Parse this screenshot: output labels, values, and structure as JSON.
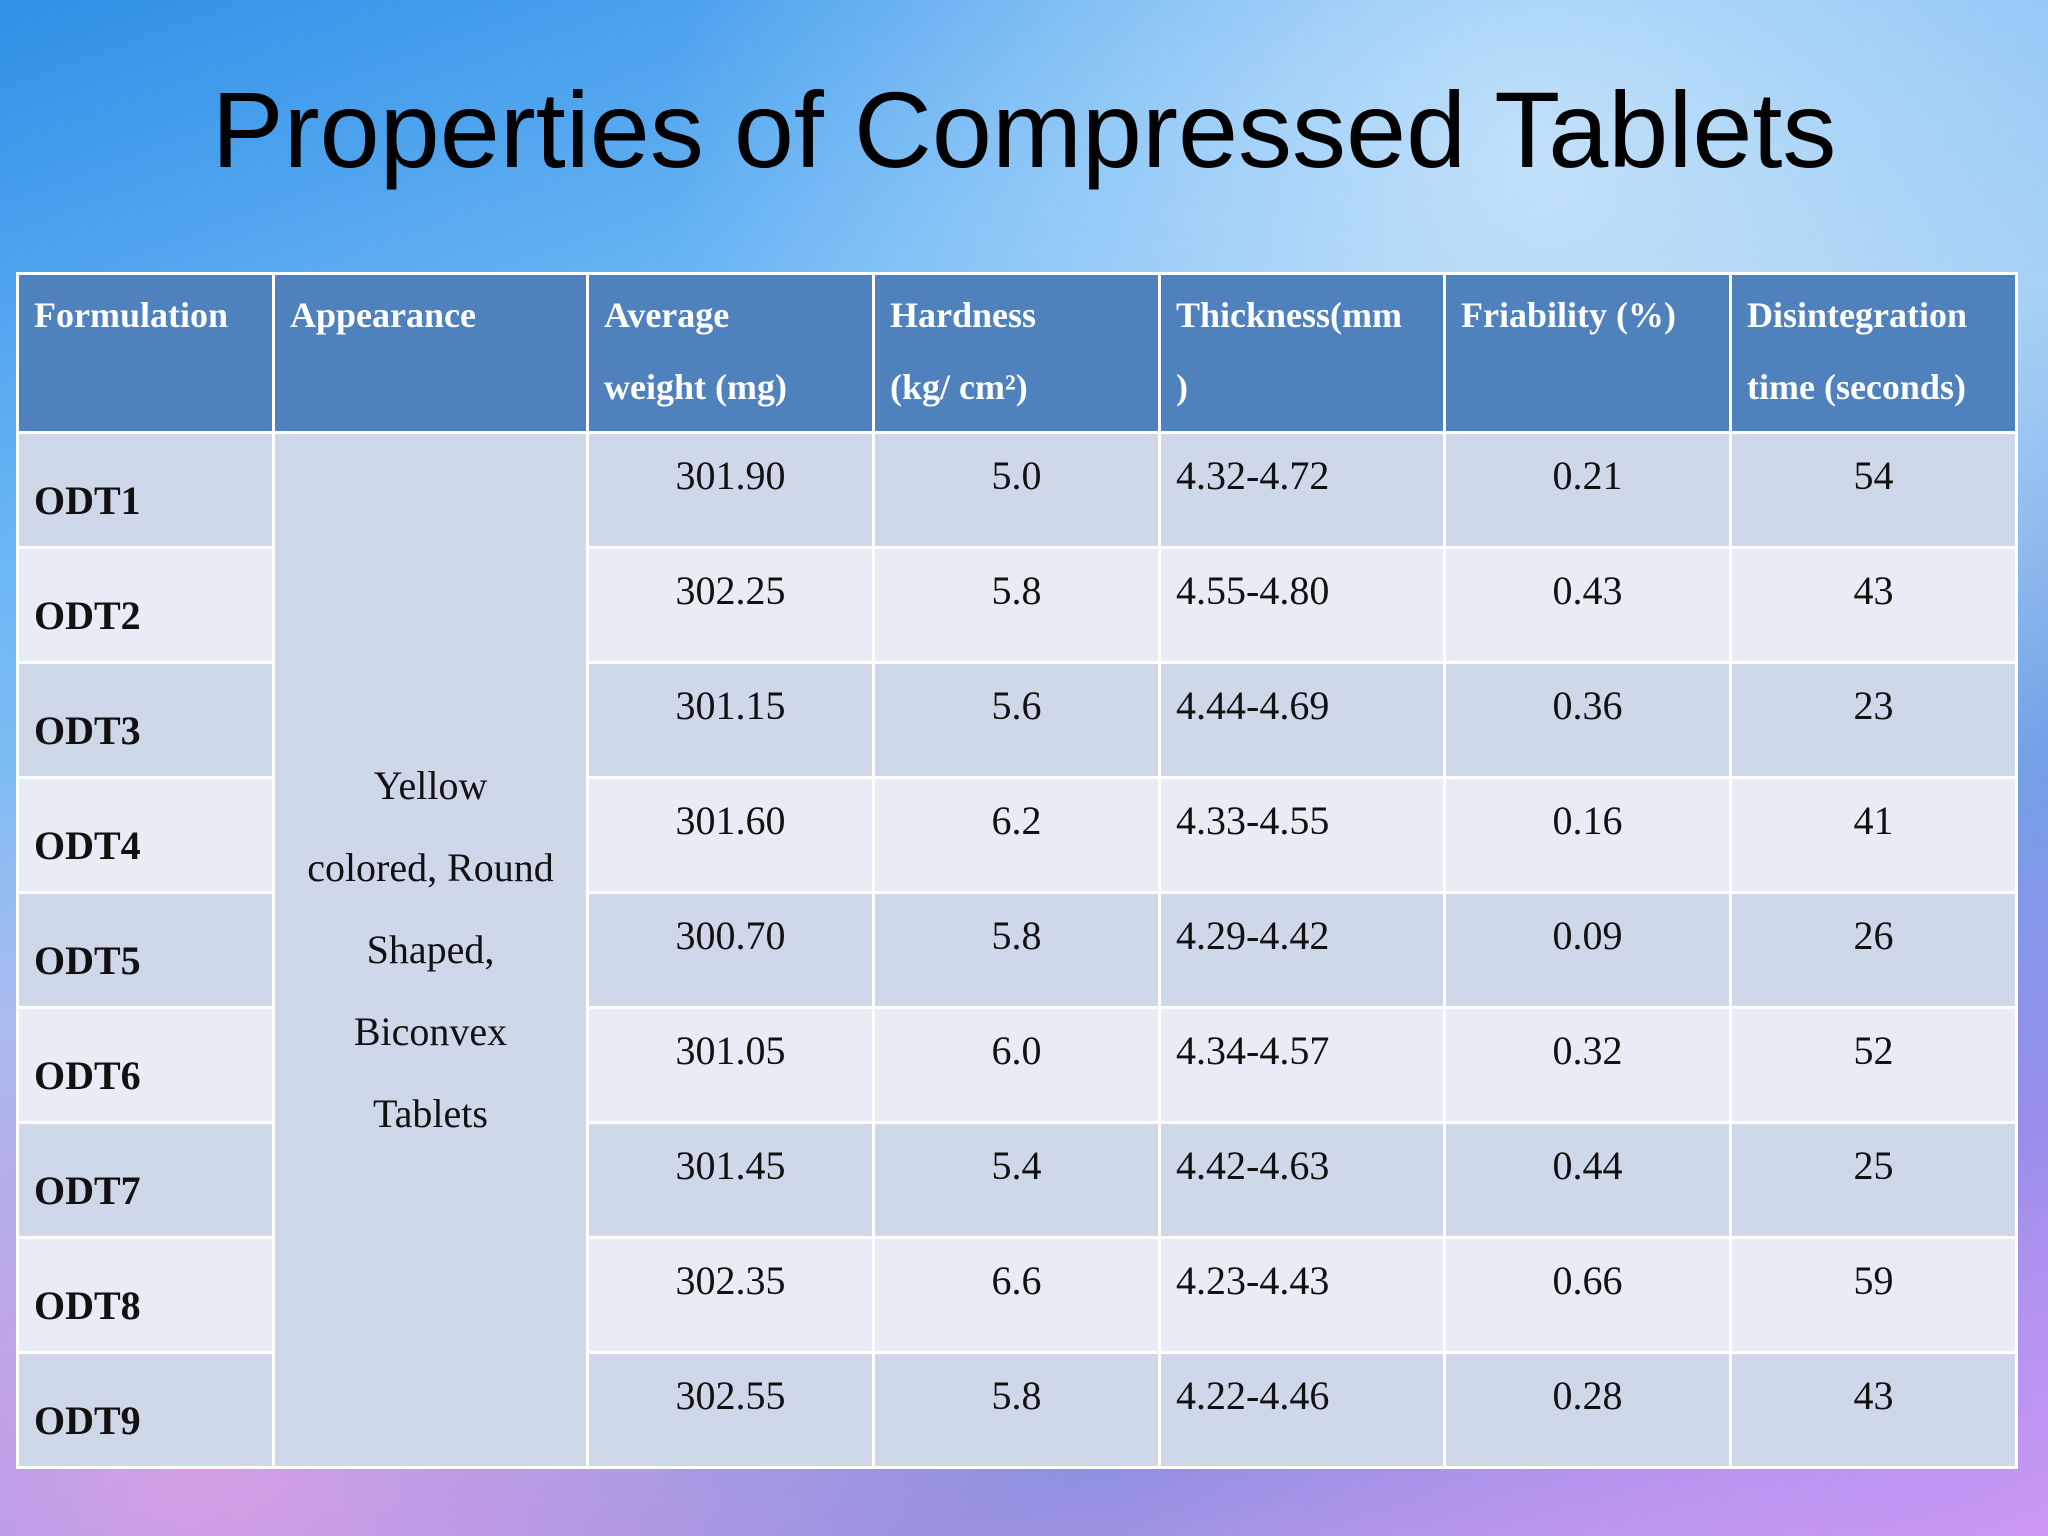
{
  "title": "Properties of Compressed Tablets",
  "table": {
    "header": [
      [
        "Formulation"
      ],
      [
        "Appearance"
      ],
      [
        "Average",
        "weight (mg)"
      ],
      [
        "Hardness",
        "(kg/ cm²)"
      ],
      [
        "Thickness(mm",
        ")"
      ],
      [
        "Friability (%)"
      ],
      [
        "Disintegration",
        "time (seconds)"
      ]
    ],
    "appearance": [
      "Yellow",
      "colored, Round",
      "Shaped,",
      "Biconvex",
      "Tablets"
    ],
    "rows": [
      [
        "ODT1",
        "301.90",
        "5.0",
        "4.32-4.72",
        "0.21",
        "54"
      ],
      [
        "ODT2",
        "302.25",
        "5.8",
        "4.55-4.80",
        "0.43",
        "43"
      ],
      [
        "ODT3",
        "301.15",
        "5.6",
        "4.44-4.69",
        "0.36",
        "23"
      ],
      [
        "ODT4",
        "301.60",
        "6.2",
        "4.33-4.55",
        "0.16",
        "41"
      ],
      [
        "ODT5",
        "300.70",
        "5.8",
        "4.29-4.42",
        "0.09",
        "26"
      ],
      [
        "ODT6",
        "301.05",
        "6.0",
        "4.34-4.57",
        "0.32",
        "52"
      ],
      [
        "ODT7",
        "301.45",
        "5.4",
        "4.42-4.63",
        "0.44",
        "25"
      ],
      [
        "ODT8",
        "302.35",
        "6.6",
        "4.23-4.43",
        "0.66",
        "59"
      ],
      [
        "ODT9",
        "302.55",
        "5.8",
        "4.22-4.46",
        "0.28",
        "43"
      ]
    ]
  }
}
